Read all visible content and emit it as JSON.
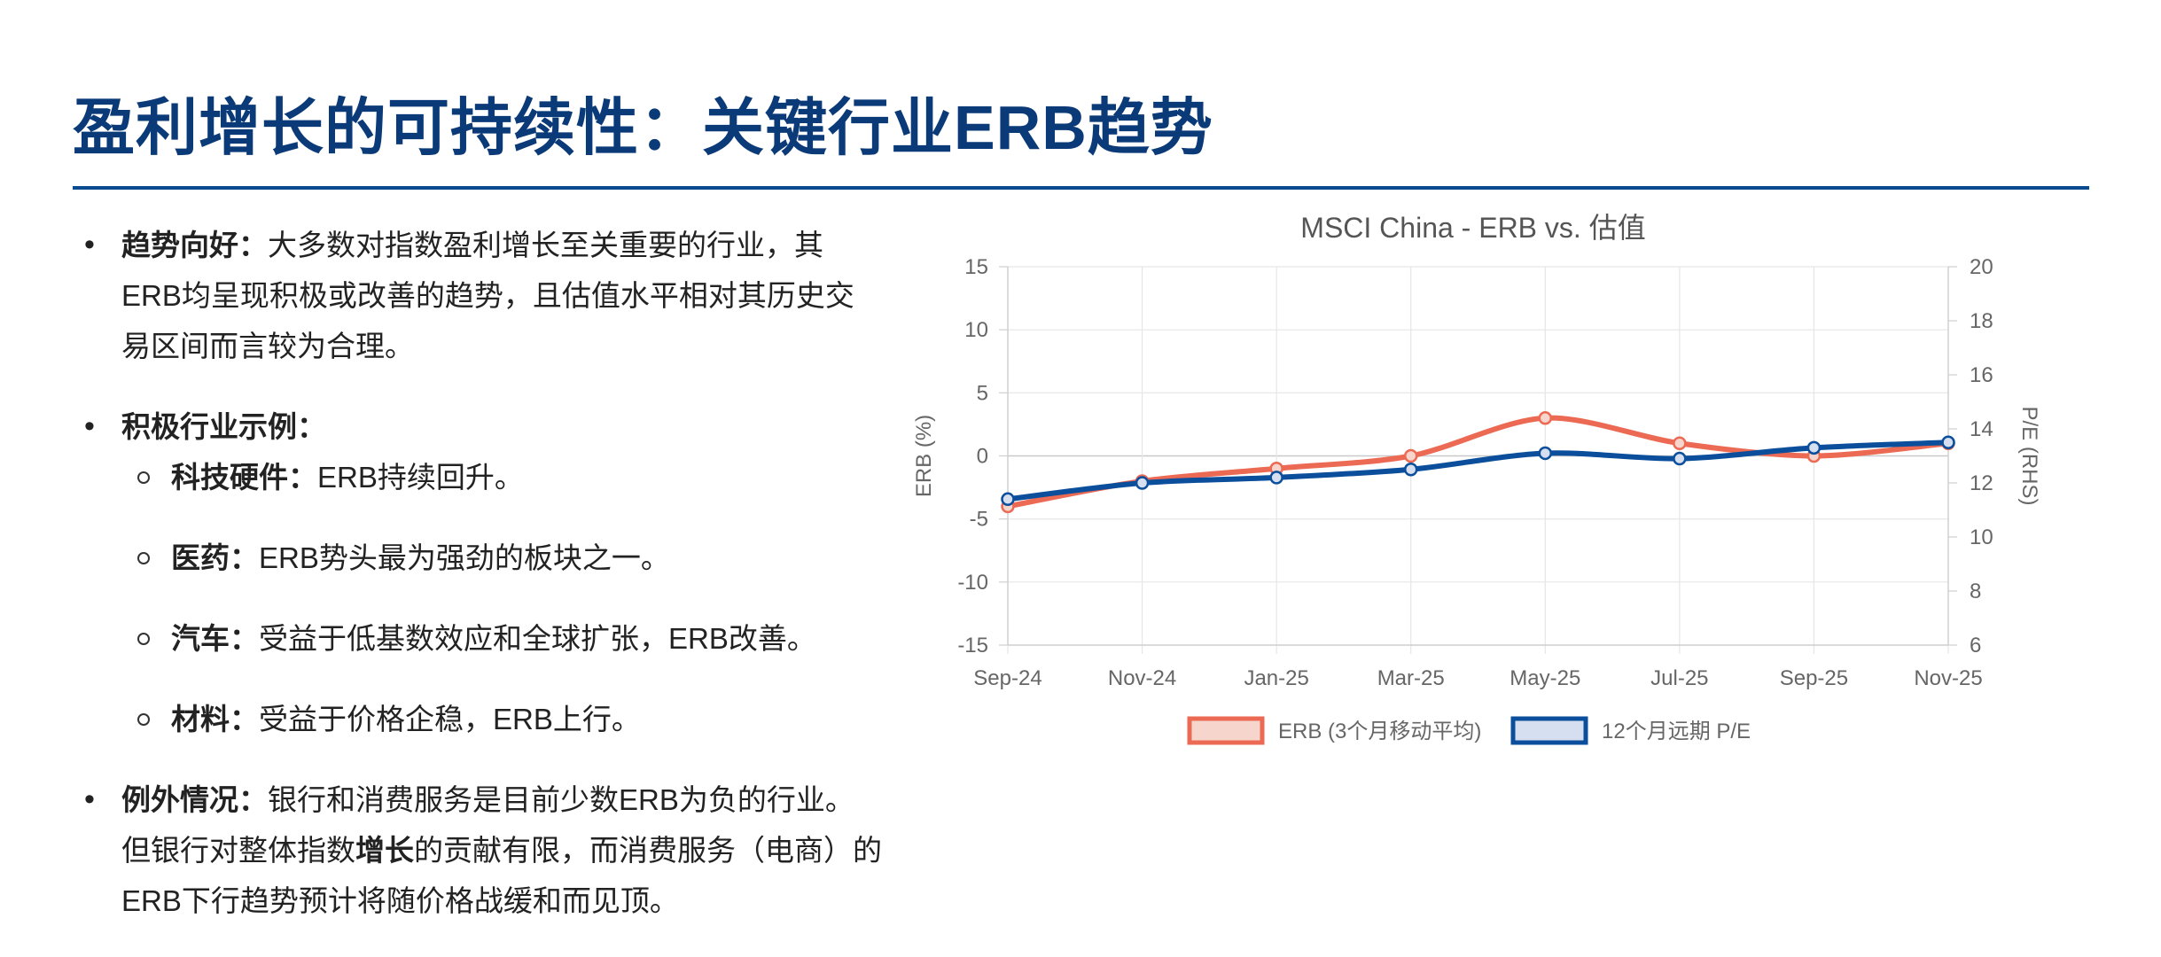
{
  "page": {
    "title": "盈利增长的可持续性：关键行业ERB趋势"
  },
  "bullets": {
    "b1": {
      "label": "趋势向好：",
      "text": "大多数对指数盈利增长至关重要的行业，其ERB均呈现积极或改善的趋势，且估值水平相对其历史交易区间而言较为合理。"
    },
    "b2": {
      "label": "积极行业示例：",
      "items": [
        {
          "label": "科技硬件：",
          "text": "ERB持续回升。"
        },
        {
          "label": "医药：",
          "text": "ERB势头最为强劲的板块之一。"
        },
        {
          "label": "汽车：",
          "text": "受益于低基数效应和全球扩张，ERB改善。"
        },
        {
          "label": "材料：",
          "text": "受益于价格企稳，ERB上行。"
        }
      ]
    },
    "b3": {
      "label": "例外情况：",
      "text_a": "银行和消费服务是目前少数ERB为负的行业。但银行对整体指数",
      "bold": "增长",
      "text_b": "的贡献有限，而消费服务（电商）的ERB下行趋势预计将随价格战缓和而见顶。"
    }
  },
  "chart_data": {
    "type": "line",
    "title": "MSCI China - ERB vs. 估值",
    "categories": [
      "Sep-24",
      "Nov-24",
      "Jan-25",
      "Mar-25",
      "May-25",
      "Jul-25",
      "Sep-25",
      "Nov-25"
    ],
    "series": [
      {
        "name": "ERB (3个月移动平均)",
        "axis": "left",
        "color": "#ec6a53",
        "values": [
          -4,
          -2,
          -1,
          0,
          3,
          1,
          0,
          1
        ]
      },
      {
        "name": "12个月远期 P/E",
        "axis": "right",
        "color": "#0b4f9c",
        "values": [
          11.4,
          12,
          12.2,
          12.5,
          13.1,
          12.9,
          13.3,
          13.5
        ]
      }
    ],
    "ylabel": "ERB (%)",
    "y2label": "P/E (RHS)",
    "ylim": [
      -15,
      15
    ],
    "yticks": [
      15,
      10,
      5,
      0,
      -5,
      -10,
      -15
    ],
    "y2lim": [
      6,
      20
    ],
    "y2ticks": [
      20,
      18,
      16,
      14,
      12,
      10,
      8,
      6
    ],
    "grid": true,
    "legend": "bottom"
  }
}
